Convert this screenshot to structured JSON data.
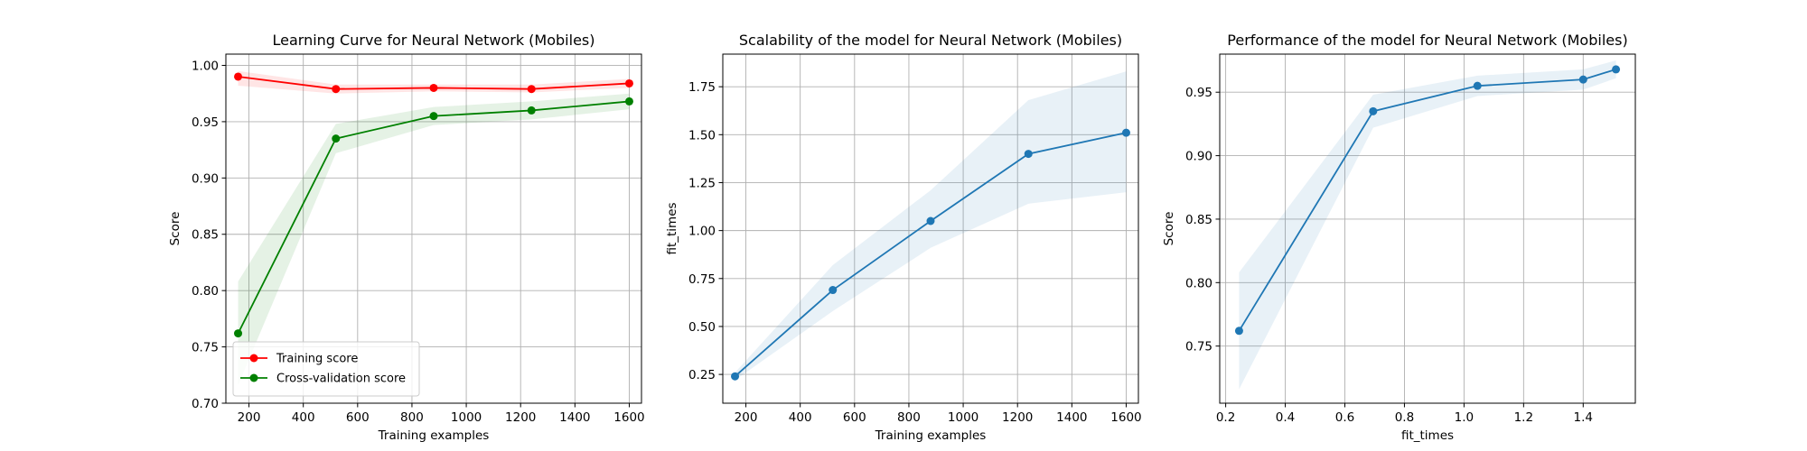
{
  "chart_data": [
    {
      "type": "line",
      "title": "Learning Curve for Neural Network (Mobiles)",
      "xlabel": "Training examples",
      "ylabel": "Score",
      "xlim": [
        115,
        1645
      ],
      "ylim": [
        0.7,
        1.01
      ],
      "xticks": [
        200,
        400,
        600,
        800,
        1000,
        1200,
        1400,
        1600
      ],
      "yticks": [
        0.7,
        0.75,
        0.8,
        0.85,
        0.9,
        0.95,
        1.0
      ],
      "xtick_labels": [
        "200",
        "400",
        "600",
        "800",
        "1000",
        "1200",
        "1400",
        "1600"
      ],
      "ytick_labels": [
        "0.70",
        "0.75",
        "0.80",
        "0.85",
        "0.90",
        "0.95",
        "1.00"
      ],
      "grid": true,
      "legend": "lower-left",
      "series": [
        {
          "name": "Training score",
          "color": "#ff0000",
          "x": [
            160,
            520,
            880,
            1240,
            1600
          ],
          "y": [
            0.99,
            0.979,
            0.98,
            0.979,
            0.984
          ],
          "band_upper": [
            0.995,
            0.983,
            0.983,
            0.983,
            0.988
          ],
          "band_lower": [
            0.982,
            0.975,
            0.977,
            0.976,
            0.98
          ]
        },
        {
          "name": "Cross-validation score",
          "color": "#008000",
          "x": [
            160,
            520,
            880,
            1240,
            1600
          ],
          "y": [
            0.762,
            0.935,
            0.955,
            0.96,
            0.968
          ],
          "band_upper": [
            0.808,
            0.948,
            0.963,
            0.968,
            0.975
          ],
          "band_lower": [
            0.716,
            0.922,
            0.947,
            0.952,
            0.961
          ]
        }
      ]
    },
    {
      "type": "line",
      "title": "Scalability of the model for Neural Network (Mobiles)",
      "xlabel": "Training examples",
      "ylabel": "fit_times",
      "xlim": [
        115,
        1645
      ],
      "ylim": [
        0.1,
        1.92
      ],
      "xticks": [
        200,
        400,
        600,
        800,
        1000,
        1200,
        1400,
        1600
      ],
      "yticks": [
        0.25,
        0.5,
        0.75,
        1.0,
        1.25,
        1.5,
        1.75
      ],
      "xtick_labels": [
        "200",
        "400",
        "600",
        "800",
        "1000",
        "1200",
        "1400",
        "1600"
      ],
      "ytick_labels": [
        "0.25",
        "0.50",
        "0.75",
        "1.00",
        "1.25",
        "1.50",
        "1.75"
      ],
      "grid": true,
      "series": [
        {
          "color": "#1f77b4",
          "x": [
            160,
            520,
            880,
            1240,
            1600
          ],
          "y": [
            0.24,
            0.69,
            1.05,
            1.4,
            1.51
          ],
          "band_upper": [
            0.26,
            0.82,
            1.21,
            1.68,
            1.83
          ],
          "band_lower": [
            0.22,
            0.58,
            0.91,
            1.14,
            1.2
          ]
        }
      ]
    },
    {
      "type": "line",
      "title": "Performance of the model for Neural Network (Mobiles)",
      "xlabel": "fit_times",
      "ylabel": "Score",
      "xlim": [
        0.18,
        1.575
      ],
      "ylim": [
        0.705,
        0.98
      ],
      "xticks": [
        0.2,
        0.4,
        0.6,
        0.8,
        1.0,
        1.2,
        1.4
      ],
      "yticks": [
        0.75,
        0.8,
        0.85,
        0.9,
        0.95
      ],
      "xtick_labels": [
        "0.2",
        "0.4",
        "0.6",
        "0.8",
        "1.0",
        "1.2",
        "1.4"
      ],
      "ytick_labels": [
        "0.75",
        "0.80",
        "0.85",
        "0.90",
        "0.95"
      ],
      "grid": true,
      "series": [
        {
          "color": "#1f77b4",
          "x": [
            0.245,
            0.695,
            1.045,
            1.4,
            1.51
          ],
          "y": [
            0.762,
            0.935,
            0.955,
            0.96,
            0.968
          ],
          "band_upper": [
            0.808,
            0.948,
            0.963,
            0.968,
            0.975
          ],
          "band_lower": [
            0.716,
            0.922,
            0.947,
            0.952,
            0.961
          ]
        }
      ]
    }
  ]
}
